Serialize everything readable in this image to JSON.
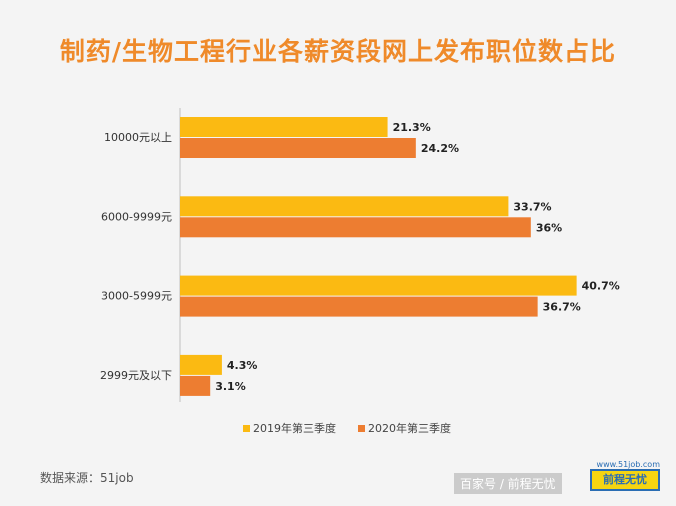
{
  "title": "制药/生物工程行业各薪资段网上发布职位数占比",
  "source_text": "数据来源：51job",
  "footer_brand": "百家号 / 前程无忧",
  "logo_url": "www.51job.com",
  "logo_text": "前程无忧",
  "colors": {
    "series1": "#fbba12",
    "series2": "#ed7d31"
  },
  "chart_data": {
    "type": "bar",
    "orientation": "horizontal",
    "title": "制药/生物工程行业各薪资段网上发布职位数占比",
    "categories": [
      "10000元以上",
      "6000-9999元",
      "3000-5999元",
      "2999元及以下"
    ],
    "series": [
      {
        "name": "2019年第三季度",
        "values": [
          21.3,
          33.7,
          40.7,
          4.3
        ],
        "labels": [
          "21.3%",
          "33.7%",
          "40.7%",
          "4.3%"
        ]
      },
      {
        "name": "2020年第三季度",
        "values": [
          24.2,
          36,
          36.7,
          3.1
        ],
        "labels": [
          "24.2%",
          "36%",
          "36.7%",
          "3.1%"
        ]
      }
    ],
    "xlim": [
      0,
      45
    ],
    "legend": "bottom",
    "grid": false
  }
}
